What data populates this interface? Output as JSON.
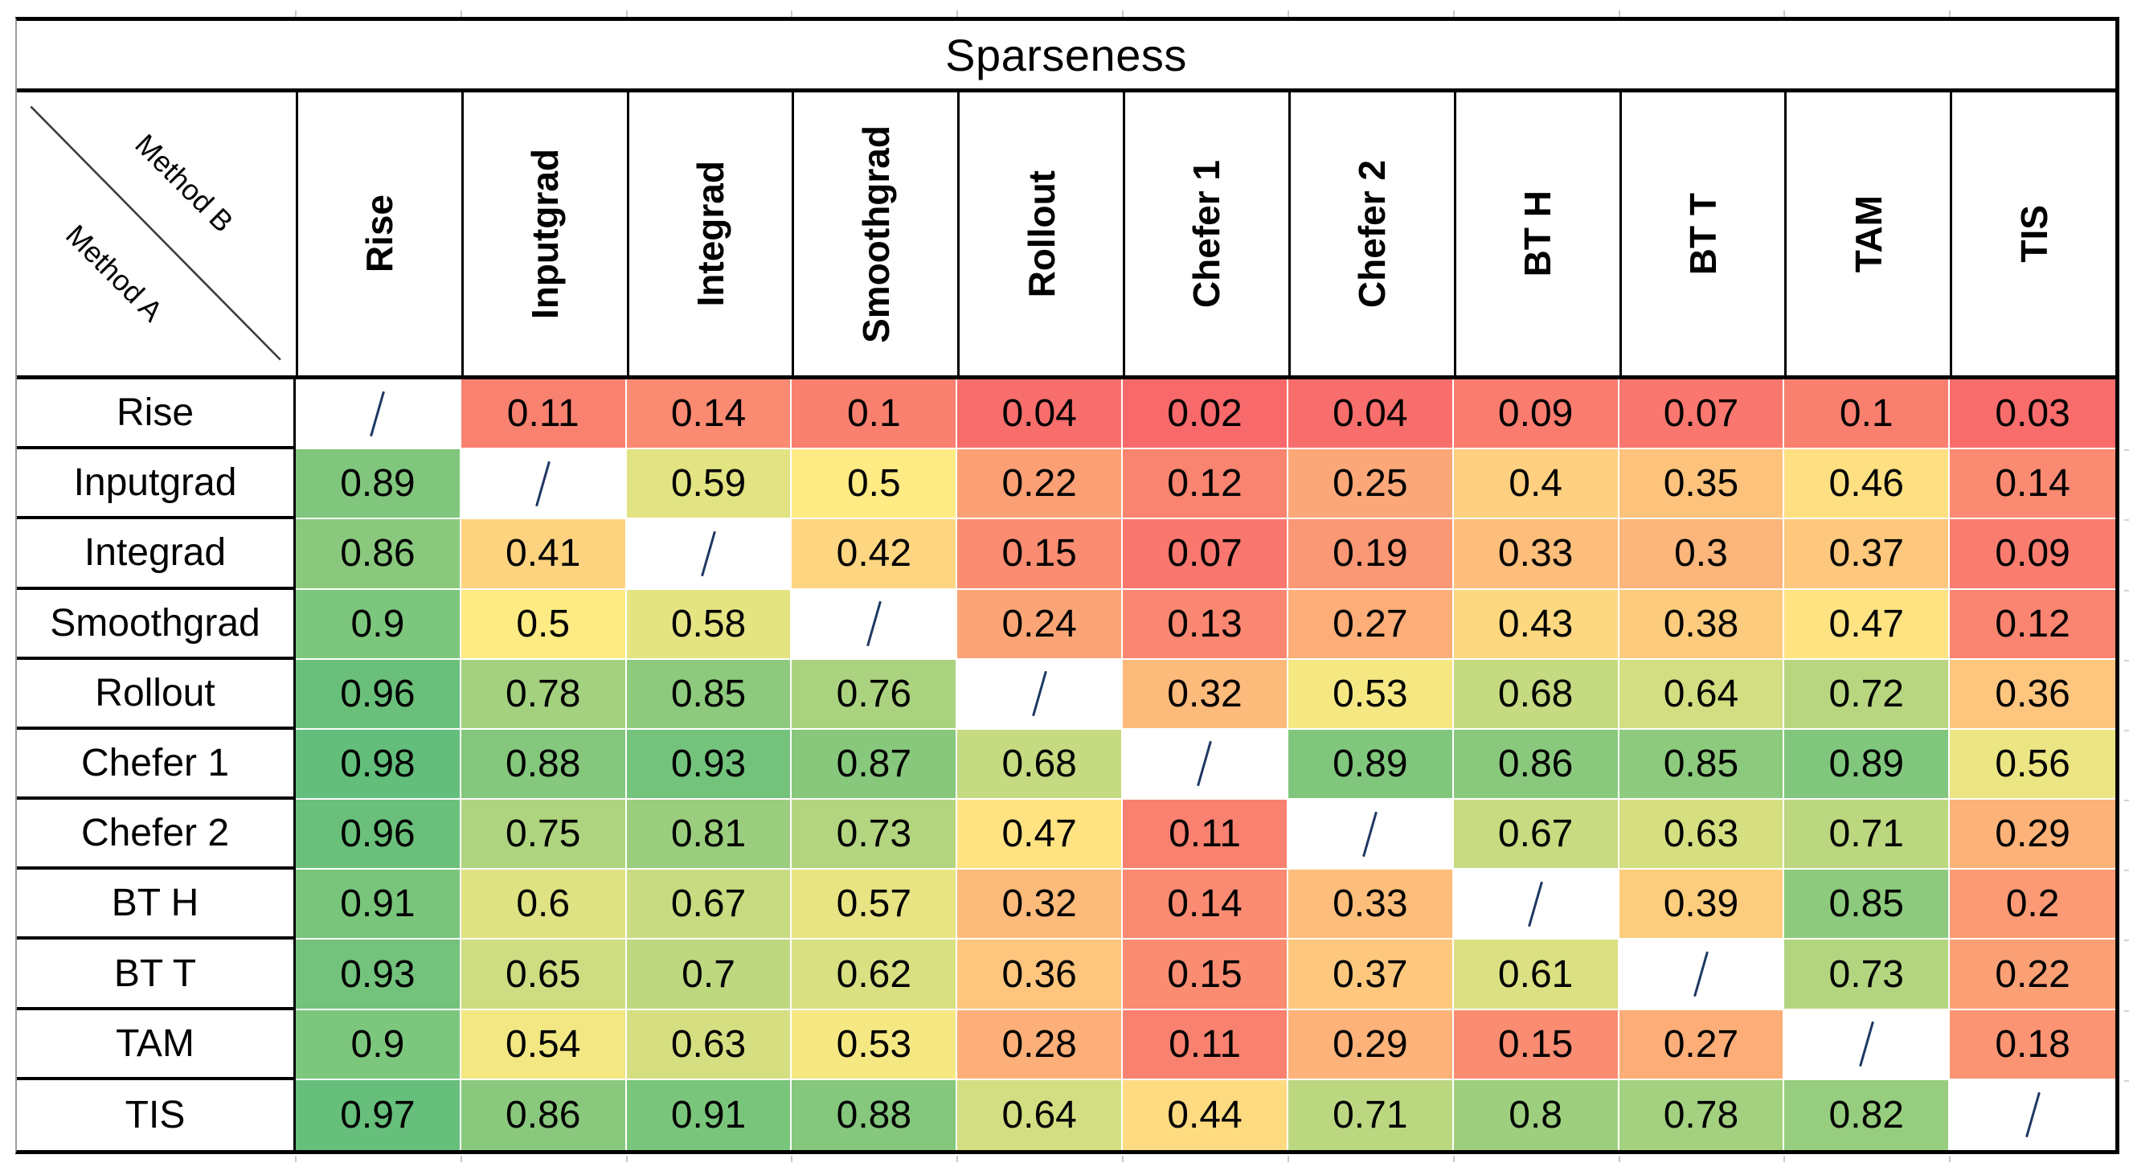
{
  "title": "Sparseness",
  "corner": {
    "top_label": "Method B",
    "bottom_label": "Method A"
  },
  "chart_data": {
    "type": "heatmap",
    "title": "Sparseness",
    "col_axis_label": "Method B",
    "row_axis_label": "Method A",
    "cols": [
      "Rise",
      "Inputgrad",
      "Integrad",
      "Smoothgrad",
      "Rollout",
      "Chefer 1",
      "Chefer 2",
      "BT H",
      "BT T",
      "TAM",
      "TIS"
    ],
    "rows": [
      "Rise",
      "Inputgrad",
      "Integrad",
      "Smoothgrad",
      "Rollout",
      "Chefer 1",
      "Chefer 2",
      "BT H",
      "BT T",
      "TAM",
      "TIS"
    ],
    "diagonal_marker": "/",
    "values": [
      [
        null,
        0.11,
        0.14,
        0.1,
        0.04,
        0.02,
        0.04,
        0.09,
        0.07,
        0.1,
        0.03
      ],
      [
        0.89,
        null,
        0.59,
        0.5,
        0.22,
        0.12,
        0.25,
        0.4,
        0.35,
        0.46,
        0.14
      ],
      [
        0.86,
        0.41,
        null,
        0.42,
        0.15,
        0.07,
        0.19,
        0.33,
        0.3,
        0.37,
        0.09
      ],
      [
        0.9,
        0.5,
        0.58,
        null,
        0.24,
        0.13,
        0.27,
        0.43,
        0.38,
        0.47,
        0.12
      ],
      [
        0.96,
        0.78,
        0.85,
        0.76,
        null,
        0.32,
        0.53,
        0.68,
        0.64,
        0.72,
        0.36
      ],
      [
        0.98,
        0.88,
        0.93,
        0.87,
        0.68,
        null,
        0.89,
        0.86,
        0.85,
        0.89,
        0.56
      ],
      [
        0.96,
        0.75,
        0.81,
        0.73,
        0.47,
        0.11,
        null,
        0.67,
        0.63,
        0.71,
        0.29
      ],
      [
        0.91,
        0.6,
        0.67,
        0.57,
        0.32,
        0.14,
        0.33,
        null,
        0.39,
        0.85,
        0.2
      ],
      [
        0.93,
        0.65,
        0.7,
        0.62,
        0.36,
        0.15,
        0.37,
        0.61,
        null,
        0.73,
        0.22
      ],
      [
        0.9,
        0.54,
        0.63,
        0.53,
        0.28,
        0.11,
        0.29,
        0.15,
        0.27,
        null,
        0.18
      ],
      [
        0.97,
        0.86,
        0.91,
        0.88,
        0.64,
        0.44,
        0.71,
        0.8,
        0.78,
        0.82,
        null
      ]
    ],
    "color_scale": {
      "type": "3-color",
      "min_value": 0.02,
      "mid_value": 0.5,
      "max_value": 0.98,
      "min_color": "#F8696B",
      "mid_color": "#FFEB84",
      "max_color": "#63BE7B",
      "diagonal_color": "#FFFFFF"
    },
    "legend": "none",
    "grid": "off"
  },
  "colors": {
    "table_border": "#000000",
    "left_edge_gridline": "#9B9B9B",
    "diagonal_slash": "#1F3864",
    "corner_diagonal_line": "#3C3C3C",
    "excel_gridline_tick": "#C9C9C9",
    "text": "#000000",
    "background": "#FFFFFF"
  }
}
